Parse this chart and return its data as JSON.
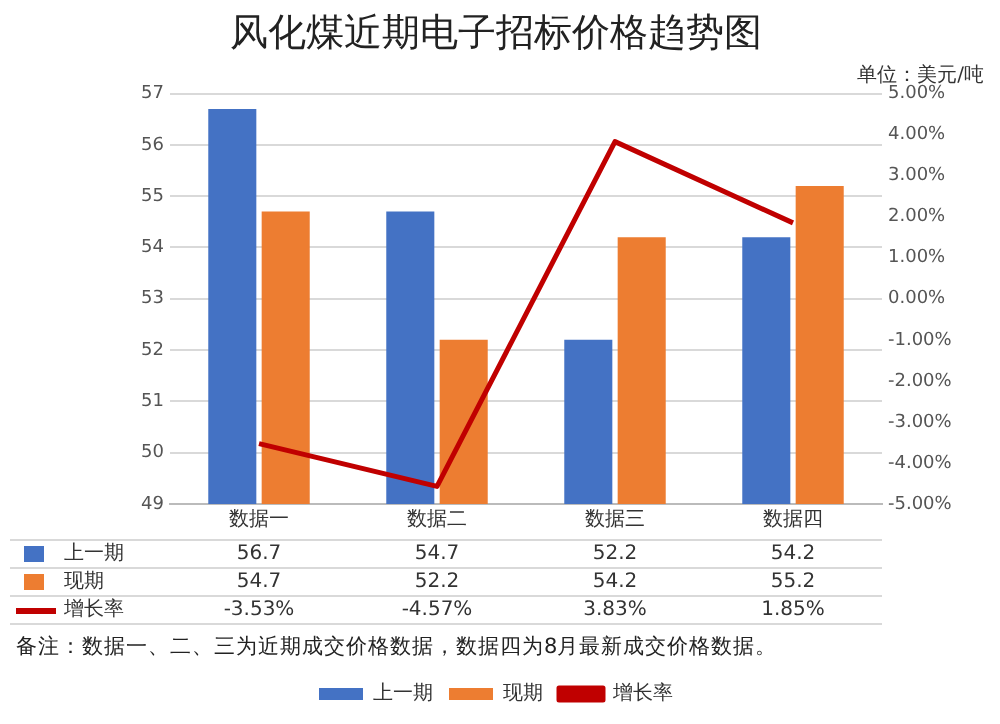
{
  "chart_data": {
    "type": "bar",
    "title": "风化煤近期电子招标价格趋势图",
    "categories": [
      "数据一",
      "数据二",
      "数据三",
      "数据四"
    ],
    "series": [
      {
        "name": "上一期",
        "color": "#4472c4",
        "values": [
          56.7,
          54.7,
          52.2,
          54.2
        ],
        "value_labels": [
          "56.7",
          "54.7",
          "52.2",
          "54.2"
        ]
      },
      {
        "name": "现期",
        "color": "#ed7d31",
        "values": [
          54.7,
          52.2,
          54.2,
          55.2
        ],
        "value_labels": [
          "54.7",
          "52.2",
          "54.2",
          "55.2"
        ]
      },
      {
        "name": "增长率",
        "type": "line",
        "axis": "y2",
        "color": "#c00000",
        "values": [
          -3.53,
          -4.57,
          3.83,
          1.85
        ],
        "value_labels": [
          "-3.53%",
          "-4.57%",
          "3.83%",
          "1.85%"
        ]
      }
    ],
    "ylim": [
      49,
      57
    ],
    "yticks": [
      49,
      50,
      51,
      52,
      53,
      54,
      55,
      56,
      57
    ],
    "y2lim": [
      -5,
      5
    ],
    "y2ticks": [
      {
        "value": -5,
        "label": "-5.00%"
      },
      {
        "value": -4,
        "label": "-4.00%"
      },
      {
        "value": -3,
        "label": "-3.00%"
      },
      {
        "value": -2,
        "label": "-2.00%"
      },
      {
        "value": -1,
        "label": "-1.00%"
      },
      {
        "value": 0,
        "label": "0.00%"
      },
      {
        "value": 1,
        "label": "1.00%"
      },
      {
        "value": 2,
        "label": "2.00%"
      },
      {
        "value": 3,
        "label": "3.00%"
      },
      {
        "value": 4,
        "label": "4.00%"
      },
      {
        "value": 5,
        "label": "5.00%"
      }
    ],
    "annotations": [
      "单位：美元/吨",
      "备注：数据一、二、三为近期成交价格数据，数据四为8月最新成交价格数据。"
    ],
    "grid": "y",
    "legend": "bottom",
    "marker": "none",
    "line_style": "solid"
  }
}
